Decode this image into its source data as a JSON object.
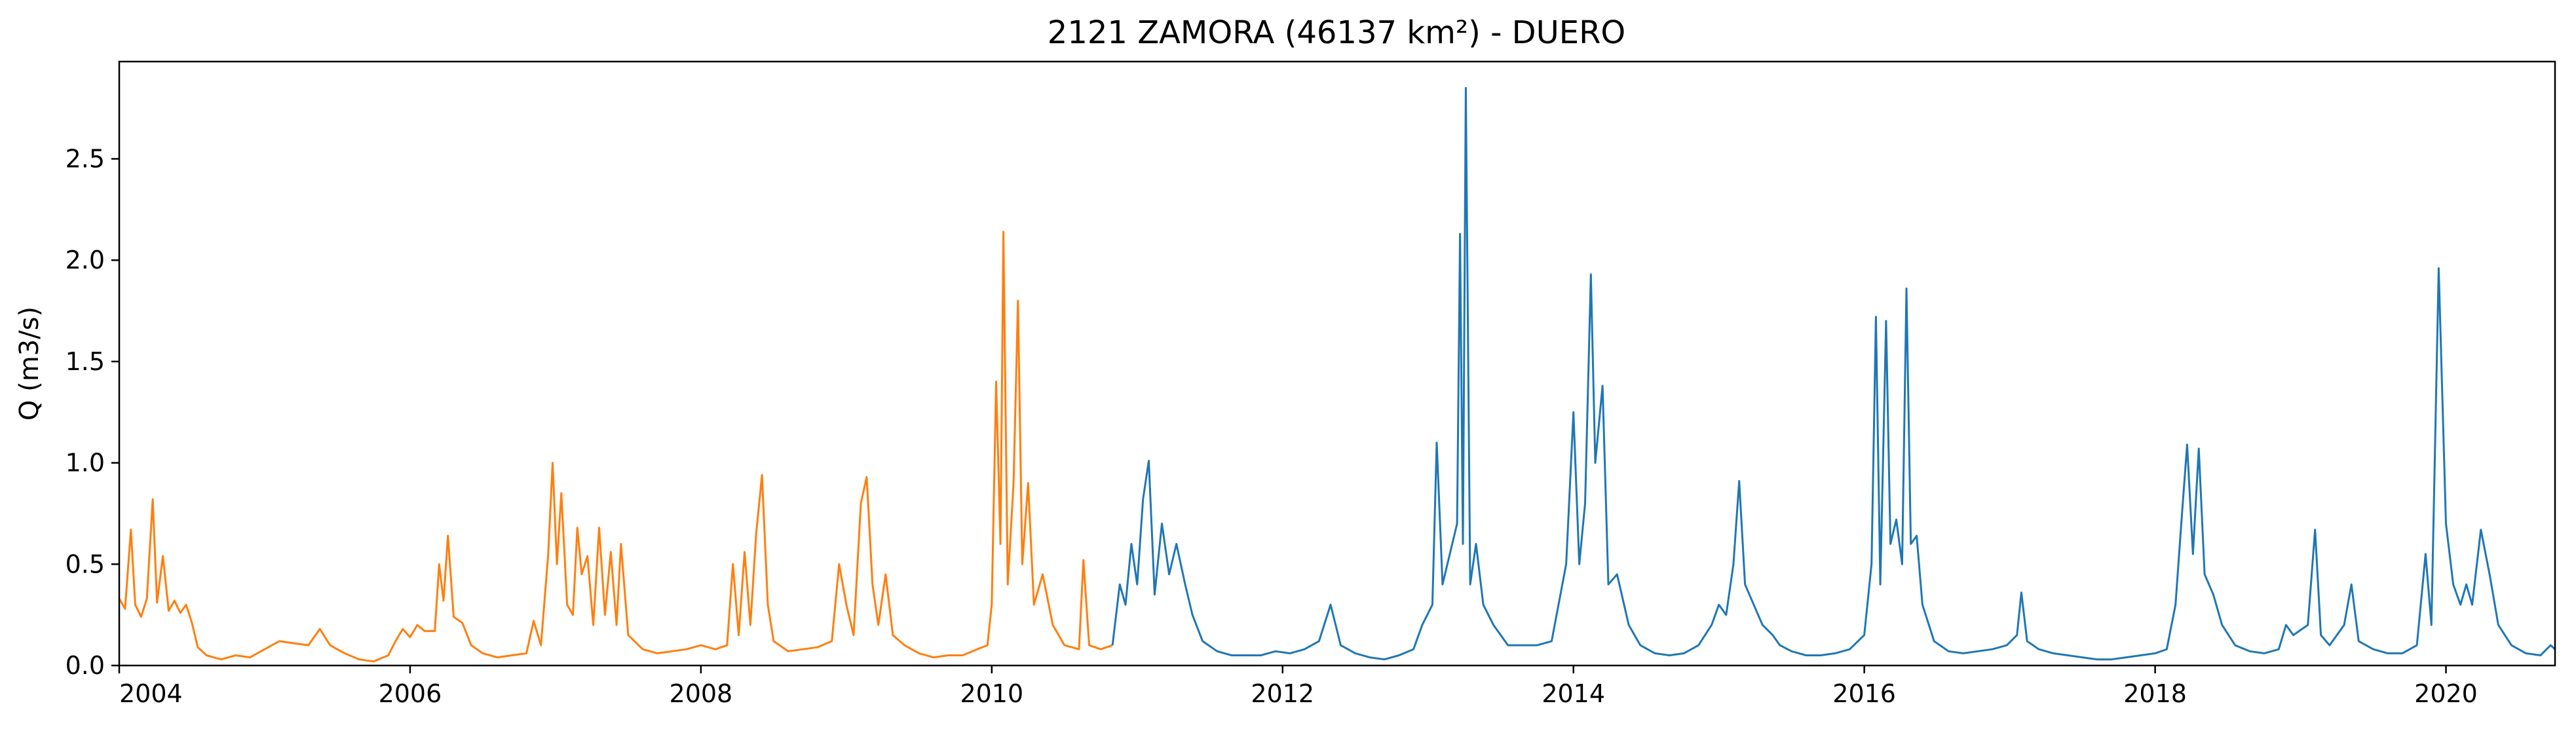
{
  "chart_data": {
    "type": "line",
    "title": "2121 ZAMORA (46137 km²) - DUERO",
    "xlabel": "",
    "ylabel": "Q (m3/s)",
    "xlim": [
      2004.0,
      2020.75
    ],
    "ylim": [
      0.0,
      2.98
    ],
    "x_ticks": [
      {
        "value": 2004,
        "label": "2004"
      },
      {
        "value": 2006,
        "label": "2006"
      },
      {
        "value": 2008,
        "label": "2008"
      },
      {
        "value": 2010,
        "label": "2010"
      },
      {
        "value": 2012,
        "label": "2012"
      },
      {
        "value": 2014,
        "label": "2014"
      },
      {
        "value": 2016,
        "label": "2016"
      },
      {
        "value": 2018,
        "label": "2018"
      },
      {
        "value": 2020,
        "label": "2020"
      }
    ],
    "y_ticks": [
      {
        "value": 0.0,
        "label": "0.0"
      },
      {
        "value": 0.5,
        "label": "0.5"
      },
      {
        "value": 1.0,
        "label": "1.0"
      },
      {
        "value": 1.5,
        "label": "1.5"
      },
      {
        "value": 2.0,
        "label": "2.0"
      },
      {
        "value": 2.5,
        "label": "2.5"
      }
    ],
    "grid": false,
    "legend": "none",
    "series": [
      {
        "color": "#ff7f0e",
        "points": [
          [
            2004.0,
            0.33
          ],
          [
            2004.04,
            0.28
          ],
          [
            2004.08,
            0.67
          ],
          [
            2004.11,
            0.3
          ],
          [
            2004.15,
            0.24
          ],
          [
            2004.19,
            0.33
          ],
          [
            2004.23,
            0.82
          ],
          [
            2004.26,
            0.31
          ],
          [
            2004.3,
            0.54
          ],
          [
            2004.34,
            0.27
          ],
          [
            2004.38,
            0.32
          ],
          [
            2004.42,
            0.26
          ],
          [
            2004.46,
            0.3
          ],
          [
            2004.5,
            0.21
          ],
          [
            2004.54,
            0.09
          ],
          [
            2004.6,
            0.05
          ],
          [
            2004.7,
            0.03
          ],
          [
            2004.8,
            0.05
          ],
          [
            2004.9,
            0.04
          ],
          [
            2005.0,
            0.08
          ],
          [
            2005.1,
            0.12
          ],
          [
            2005.2,
            0.11
          ],
          [
            2005.3,
            0.1
          ],
          [
            2005.38,
            0.18
          ],
          [
            2005.45,
            0.1
          ],
          [
            2005.55,
            0.06
          ],
          [
            2005.65,
            0.03
          ],
          [
            2005.75,
            0.02
          ],
          [
            2005.85,
            0.05
          ],
          [
            2005.9,
            0.12
          ],
          [
            2005.95,
            0.18
          ],
          [
            2006.0,
            0.14
          ],
          [
            2006.05,
            0.2
          ],
          [
            2006.1,
            0.17
          ],
          [
            2006.17,
            0.17
          ],
          [
            2006.2,
            0.5
          ],
          [
            2006.23,
            0.32
          ],
          [
            2006.26,
            0.64
          ],
          [
            2006.3,
            0.24
          ],
          [
            2006.36,
            0.21
          ],
          [
            2006.42,
            0.1
          ],
          [
            2006.5,
            0.06
          ],
          [
            2006.6,
            0.04
          ],
          [
            2006.7,
            0.05
          ],
          [
            2006.8,
            0.06
          ],
          [
            2006.85,
            0.22
          ],
          [
            2006.9,
            0.1
          ],
          [
            2006.95,
            0.55
          ],
          [
            2006.98,
            1.0
          ],
          [
            2007.01,
            0.5
          ],
          [
            2007.04,
            0.85
          ],
          [
            2007.08,
            0.3
          ],
          [
            2007.12,
            0.25
          ],
          [
            2007.15,
            0.68
          ],
          [
            2007.18,
            0.45
          ],
          [
            2007.22,
            0.54
          ],
          [
            2007.26,
            0.2
          ],
          [
            2007.3,
            0.68
          ],
          [
            2007.34,
            0.25
          ],
          [
            2007.38,
            0.56
          ],
          [
            2007.42,
            0.2
          ],
          [
            2007.45,
            0.6
          ],
          [
            2007.5,
            0.15
          ],
          [
            2007.6,
            0.08
          ],
          [
            2007.7,
            0.06
          ],
          [
            2007.8,
            0.07
          ],
          [
            2007.9,
            0.08
          ],
          [
            2008.0,
            0.1
          ],
          [
            2008.1,
            0.08
          ],
          [
            2008.18,
            0.1
          ],
          [
            2008.22,
            0.5
          ],
          [
            2008.26,
            0.15
          ],
          [
            2008.3,
            0.56
          ],
          [
            2008.34,
            0.2
          ],
          [
            2008.38,
            0.65
          ],
          [
            2008.42,
            0.94
          ],
          [
            2008.46,
            0.3
          ],
          [
            2008.5,
            0.12
          ],
          [
            2008.6,
            0.07
          ],
          [
            2008.7,
            0.08
          ],
          [
            2008.8,
            0.09
          ],
          [
            2008.9,
            0.12
          ],
          [
            2008.95,
            0.5
          ],
          [
            2009.0,
            0.3
          ],
          [
            2009.05,
            0.15
          ],
          [
            2009.1,
            0.8
          ],
          [
            2009.14,
            0.93
          ],
          [
            2009.18,
            0.4
          ],
          [
            2009.22,
            0.2
          ],
          [
            2009.27,
            0.45
          ],
          [
            2009.32,
            0.15
          ],
          [
            2009.4,
            0.1
          ],
          [
            2009.5,
            0.06
          ],
          [
            2009.6,
            0.04
          ],
          [
            2009.7,
            0.05
          ],
          [
            2009.8,
            0.05
          ],
          [
            2009.9,
            0.08
          ],
          [
            2009.97,
            0.1
          ],
          [
            2010.0,
            0.3
          ],
          [
            2010.03,
            1.4
          ],
          [
            2010.06,
            0.6
          ],
          [
            2010.08,
            2.14
          ],
          [
            2010.11,
            0.4
          ],
          [
            2010.15,
            0.9
          ],
          [
            2010.18,
            1.8
          ],
          [
            2010.21,
            0.5
          ],
          [
            2010.25,
            0.9
          ],
          [
            2010.29,
            0.3
          ],
          [
            2010.35,
            0.45
          ],
          [
            2010.42,
            0.2
          ],
          [
            2010.5,
            0.1
          ],
          [
            2010.6,
            0.08
          ],
          [
            2010.63,
            0.52
          ],
          [
            2010.67,
            0.1
          ],
          [
            2010.75,
            0.08
          ],
          [
            2010.83,
            0.1
          ]
        ]
      },
      {
        "color": "#1f77b4",
        "points": [
          [
            2010.83,
            0.1
          ],
          [
            2010.88,
            0.4
          ],
          [
            2010.92,
            0.3
          ],
          [
            2010.96,
            0.6
          ],
          [
            2011.0,
            0.4
          ],
          [
            2011.04,
            0.82
          ],
          [
            2011.08,
            1.01
          ],
          [
            2011.12,
            0.35
          ],
          [
            2011.17,
            0.7
          ],
          [
            2011.22,
            0.45
          ],
          [
            2011.27,
            0.6
          ],
          [
            2011.33,
            0.4
          ],
          [
            2011.38,
            0.25
          ],
          [
            2011.45,
            0.12
          ],
          [
            2011.55,
            0.07
          ],
          [
            2011.65,
            0.05
          ],
          [
            2011.75,
            0.05
          ],
          [
            2011.85,
            0.05
          ],
          [
            2011.95,
            0.07
          ],
          [
            2012.05,
            0.06
          ],
          [
            2012.15,
            0.08
          ],
          [
            2012.25,
            0.12
          ],
          [
            2012.33,
            0.3
          ],
          [
            2012.4,
            0.1
          ],
          [
            2012.5,
            0.06
          ],
          [
            2012.6,
            0.04
          ],
          [
            2012.7,
            0.03
          ],
          [
            2012.8,
            0.05
          ],
          [
            2012.9,
            0.08
          ],
          [
            2012.96,
            0.2
          ],
          [
            2013.03,
            0.3
          ],
          [
            2013.06,
            1.1
          ],
          [
            2013.1,
            0.4
          ],
          [
            2013.15,
            0.55
          ],
          [
            2013.2,
            0.7
          ],
          [
            2013.22,
            2.13
          ],
          [
            2013.24,
            0.6
          ],
          [
            2013.26,
            2.85
          ],
          [
            2013.29,
            0.4
          ],
          [
            2013.33,
            0.6
          ],
          [
            2013.38,
            0.3
          ],
          [
            2013.45,
            0.2
          ],
          [
            2013.55,
            0.1
          ],
          [
            2013.65,
            0.1
          ],
          [
            2013.75,
            0.1
          ],
          [
            2013.85,
            0.12
          ],
          [
            2013.95,
            0.5
          ],
          [
            2014.0,
            1.25
          ],
          [
            2014.04,
            0.5
          ],
          [
            2014.08,
            0.8
          ],
          [
            2014.12,
            1.93
          ],
          [
            2014.15,
            1.0
          ],
          [
            2014.2,
            1.38
          ],
          [
            2014.24,
            0.4
          ],
          [
            2014.3,
            0.45
          ],
          [
            2014.38,
            0.2
          ],
          [
            2014.46,
            0.1
          ],
          [
            2014.56,
            0.06
          ],
          [
            2014.66,
            0.05
          ],
          [
            2014.76,
            0.06
          ],
          [
            2014.86,
            0.1
          ],
          [
            2014.95,
            0.2
          ],
          [
            2015.0,
            0.3
          ],
          [
            2015.05,
            0.25
          ],
          [
            2015.1,
            0.5
          ],
          [
            2015.14,
            0.91
          ],
          [
            2015.18,
            0.4
          ],
          [
            2015.24,
            0.3
          ],
          [
            2015.3,
            0.2
          ],
          [
            2015.37,
            0.15
          ],
          [
            2015.42,
            0.1
          ],
          [
            2015.5,
            0.07
          ],
          [
            2015.6,
            0.05
          ],
          [
            2015.7,
            0.05
          ],
          [
            2015.8,
            0.06
          ],
          [
            2015.9,
            0.08
          ],
          [
            2016.0,
            0.15
          ],
          [
            2016.05,
            0.5
          ],
          [
            2016.08,
            1.72
          ],
          [
            2016.11,
            0.4
          ],
          [
            2016.15,
            1.7
          ],
          [
            2016.18,
            0.6
          ],
          [
            2016.22,
            0.72
          ],
          [
            2016.26,
            0.5
          ],
          [
            2016.29,
            1.86
          ],
          [
            2016.32,
            0.6
          ],
          [
            2016.36,
            0.64
          ],
          [
            2016.4,
            0.3
          ],
          [
            2016.48,
            0.12
          ],
          [
            2016.58,
            0.07
          ],
          [
            2016.68,
            0.06
          ],
          [
            2016.78,
            0.07
          ],
          [
            2016.88,
            0.08
          ],
          [
            2016.98,
            0.1
          ],
          [
            2017.05,
            0.15
          ],
          [
            2017.08,
            0.36
          ],
          [
            2017.12,
            0.12
          ],
          [
            2017.2,
            0.08
          ],
          [
            2017.3,
            0.06
          ],
          [
            2017.4,
            0.05
          ],
          [
            2017.5,
            0.04
          ],
          [
            2017.6,
            0.03
          ],
          [
            2017.7,
            0.03
          ],
          [
            2017.8,
            0.04
          ],
          [
            2017.9,
            0.05
          ],
          [
            2018.0,
            0.06
          ],
          [
            2018.08,
            0.08
          ],
          [
            2018.14,
            0.3
          ],
          [
            2018.18,
            0.7
          ],
          [
            2018.22,
            1.09
          ],
          [
            2018.26,
            0.55
          ],
          [
            2018.3,
            1.07
          ],
          [
            2018.34,
            0.45
          ],
          [
            2018.4,
            0.35
          ],
          [
            2018.46,
            0.2
          ],
          [
            2018.55,
            0.1
          ],
          [
            2018.65,
            0.07
          ],
          [
            2018.75,
            0.06
          ],
          [
            2018.85,
            0.08
          ],
          [
            2018.9,
            0.2
          ],
          [
            2018.95,
            0.15
          ],
          [
            2019.05,
            0.2
          ],
          [
            2019.1,
            0.67
          ],
          [
            2019.14,
            0.15
          ],
          [
            2019.2,
            0.1
          ],
          [
            2019.3,
            0.2
          ],
          [
            2019.35,
            0.4
          ],
          [
            2019.4,
            0.12
          ],
          [
            2019.5,
            0.08
          ],
          [
            2019.6,
            0.06
          ],
          [
            2019.7,
            0.06
          ],
          [
            2019.8,
            0.1
          ],
          [
            2019.86,
            0.55
          ],
          [
            2019.9,
            0.2
          ],
          [
            2019.95,
            1.96
          ],
          [
            2020.0,
            0.7
          ],
          [
            2020.05,
            0.4
          ],
          [
            2020.1,
            0.3
          ],
          [
            2020.14,
            0.4
          ],
          [
            2020.18,
            0.3
          ],
          [
            2020.24,
            0.67
          ],
          [
            2020.3,
            0.45
          ],
          [
            2020.36,
            0.2
          ],
          [
            2020.45,
            0.1
          ],
          [
            2020.55,
            0.06
          ],
          [
            2020.65,
            0.05
          ],
          [
            2020.72,
            0.1
          ],
          [
            2020.75,
            0.08
          ]
        ]
      }
    ]
  }
}
